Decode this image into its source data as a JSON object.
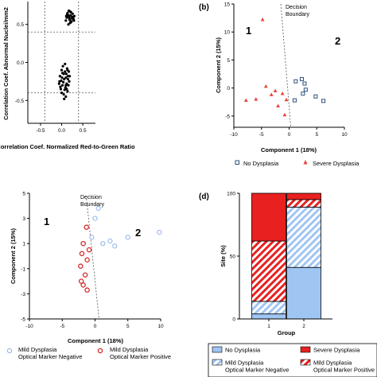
{
  "chart_data": [
    {
      "panel": "a",
      "panel_label": "",
      "type": "scatter",
      "xlabel": "Correlation Coef. Normalized Red-to-Green Ratio",
      "ylabel": "Correlation Coef. Abnormal Nuclei/mm2",
      "xlim": [
        -0.8,
        0.8
      ],
      "ylim": [
        -0.8,
        0.8
      ],
      "xticks": [
        -0.5,
        0.0,
        0.5
      ],
      "yticks": [
        -0.5,
        0.0,
        0.5
      ],
      "threshold_lines": {
        "x": [
          -0.4,
          0.4
        ],
        "y": [
          -0.4,
          0.4
        ]
      },
      "series": [
        {
          "values": [
            [
              0.15,
              0.62
            ],
            [
              0.18,
              0.58
            ],
            [
              0.22,
              0.66
            ],
            [
              0.1,
              0.55
            ],
            [
              0.25,
              0.6
            ],
            [
              0.2,
              0.52
            ],
            [
              0.13,
              0.63
            ],
            [
              0.28,
              0.57
            ],
            [
              0.17,
              0.68
            ],
            [
              0.23,
              0.54
            ],
            [
              0.3,
              0.61
            ],
            [
              0.12,
              0.59
            ],
            [
              0.19,
              0.56
            ],
            [
              0.26,
              0.64
            ],
            [
              0.16,
              0.5
            ],
            [
              0.21,
              0.62
            ],
            [
              0.24,
              0.58
            ],
            [
              0.14,
              0.65
            ],
            [
              0.29,
              0.55
            ],
            [
              0.18,
              0.6
            ],
            [
              0.22,
              0.53
            ],
            [
              0.27,
              0.59
            ],
            [
              0.11,
              0.61
            ],
            [
              0.2,
              0.67
            ],
            [
              0.0,
              -0.1
            ],
            [
              0.05,
              -0.15
            ],
            [
              0.1,
              -0.2
            ],
            [
              -0.05,
              -0.25
            ],
            [
              0.15,
              -0.18
            ],
            [
              0.02,
              -0.3
            ],
            [
              0.08,
              -0.12
            ],
            [
              0.12,
              -0.28
            ],
            [
              -0.02,
              -0.35
            ],
            [
              0.06,
              -0.22
            ],
            [
              0.18,
              -0.25
            ],
            [
              0.0,
              -0.4
            ],
            [
              0.09,
              -0.33
            ],
            [
              0.14,
              -0.38
            ],
            [
              -0.04,
              -0.18
            ],
            [
              0.03,
              -0.05
            ],
            [
              0.11,
              -0.15
            ],
            [
              0.16,
              -0.3
            ],
            [
              0.05,
              -0.42
            ],
            [
              -0.06,
              -0.28
            ],
            [
              0.07,
              -0.36
            ],
            [
              0.13,
              -0.08
            ],
            [
              0.01,
              -0.2
            ],
            [
              0.1,
              -0.45
            ],
            [
              0.17,
              -0.12
            ],
            [
              -0.03,
              -0.32
            ],
            [
              0.04,
              -0.26
            ],
            [
              0.12,
              -0.35
            ],
            [
              0.08,
              -0.02
            ],
            [
              0.15,
              -0.22
            ],
            [
              0.02,
              -0.14
            ],
            [
              0.06,
              -0.48
            ],
            [
              0.19,
              -0.18
            ],
            [
              -0.01,
              -0.24
            ],
            [
              0.1,
              -0.3
            ],
            [
              0.14,
              -0.1
            ]
          ]
        }
      ]
    },
    {
      "panel": "b",
      "panel_label": "(b)",
      "type": "scatter",
      "xlabel": "Component 1 (18%)",
      "ylabel": "Component 2 (15%)",
      "xlim": [
        -10,
        10
      ],
      "ylim": [
        -7,
        15
      ],
      "xticks": [
        -10,
        -5,
        0,
        5,
        10
      ],
      "yticks": [
        -5,
        0,
        5,
        10,
        15
      ],
      "boundary_label": "Decision Boundary",
      "region_labels": [
        "1",
        "2"
      ],
      "series": [
        {
          "name": "No Dysplasia",
          "color": "#2c4f7c",
          "marker": "square",
          "points": [
            [
              1.2,
              1.2
            ],
            [
              2.8,
              0.8
            ],
            [
              3.0,
              -0.3
            ],
            [
              2.5,
              -1.0
            ],
            [
              4.8,
              -1.5
            ],
            [
              6.2,
              -2.3
            ],
            [
              1.0,
              -2.2
            ],
            [
              2.3,
              1.6
            ]
          ]
        },
        {
          "name": "Severe Dysplasia",
          "color": "#e8413a",
          "marker": "triangle",
          "points": [
            [
              -4.8,
              12.2
            ],
            [
              -2.5,
              -0.5
            ],
            [
              -3.2,
              -1.2
            ],
            [
              -1.2,
              -1.0
            ],
            [
              -6.0,
              -2.0
            ],
            [
              -7.8,
              -2.2
            ],
            [
              -2.0,
              -3.2
            ],
            [
              -0.5,
              -2.1
            ],
            [
              -4.2,
              0.3
            ],
            [
              -0.8,
              -4.8
            ]
          ]
        }
      ]
    },
    {
      "panel": "c",
      "panel_label": "",
      "type": "scatter",
      "xlabel": "Component 1 (18%)",
      "ylabel": "Component 2 (15%)",
      "xlim": [
        -10,
        10
      ],
      "ylim": [
        -5,
        5
      ],
      "xticks": [
        -10,
        -5,
        0,
        5,
        10
      ],
      "yticks": [
        -5,
        -3,
        -1,
        1,
        3,
        5
      ],
      "boundary_label": "Decision\nBoundary",
      "region_labels": [
        "1",
        "2"
      ],
      "series": [
        {
          "name": "Mild Dysplasia\nOptical Marker Negative",
          "color": "#8fb3e8",
          "marker": "circle",
          "points": [
            [
              0.5,
              3.8
            ],
            [
              0.0,
              3.0
            ],
            [
              1.2,
              1.0
            ],
            [
              2.3,
              1.2
            ],
            [
              5.0,
              1.5
            ],
            [
              9.8,
              1.9
            ],
            [
              -0.5,
              1.5
            ],
            [
              3.0,
              0.8
            ]
          ]
        },
        {
          "name": "Mild Dysplasia\nOptical Marker Positive",
          "color": "#d42a2a",
          "marker": "circle",
          "points": [
            [
              -1.3,
              2.3
            ],
            [
              -1.8,
              1.0
            ],
            [
              -2.0,
              0.2
            ],
            [
              -1.2,
              -0.3
            ],
            [
              -2.2,
              -0.8
            ],
            [
              -1.5,
              -1.5
            ],
            [
              -1.8,
              -2.3
            ],
            [
              -1.2,
              -2.7
            ],
            [
              -2.1,
              -2.0
            ],
            [
              -0.9,
              0.5
            ]
          ]
        }
      ]
    },
    {
      "panel": "d",
      "panel_label": "(d)",
      "type": "bar",
      "stacked": true,
      "xlabel": "Group",
      "ylabel": "Site (%)",
      "categories": [
        "1",
        "2"
      ],
      "ylim": [
        0,
        100
      ],
      "yticks": [
        0,
        50,
        100
      ],
      "series": [
        {
          "name": "No Dysplasia",
          "values": [
            4,
            41
          ],
          "color": "#9fc5f3",
          "pattern": "solid"
        },
        {
          "name": "Mild Dysplasia\nOptical Marker Negative",
          "values": [
            10,
            48
          ],
          "color": "#9fc5f3",
          "pattern": "hatch"
        },
        {
          "name": "Mild Dysplasia\nOptical Marker Positive",
          "values": [
            48,
            6
          ],
          "color": "#e8201f",
          "pattern": "hatch"
        },
        {
          "name": "Severe Dysplasia",
          "values": [
            38,
            5
          ],
          "color": "#e8201f",
          "pattern": "solid"
        }
      ]
    }
  ]
}
